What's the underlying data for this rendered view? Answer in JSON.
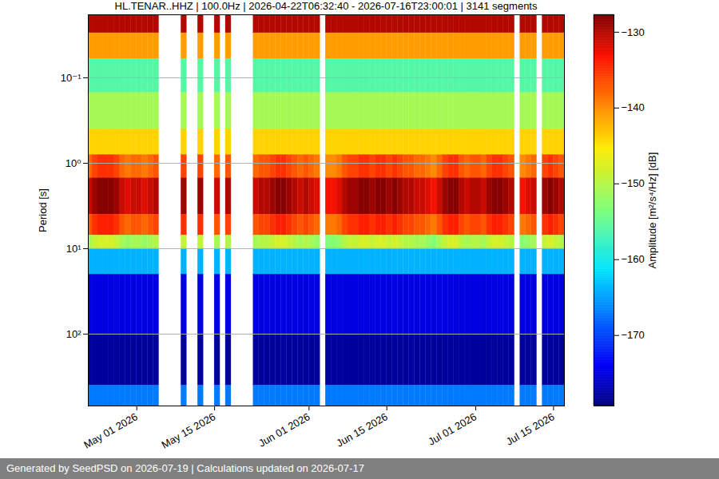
{
  "chart_data": {
    "type": "heatmap",
    "title": "HL.TENAR..HHZ | 100.0Hz | 2026-04-22T06:32:40 - 2026-07-16T23:00:01 | 3141 segments",
    "ylabel": "Period [s]",
    "footer": "Generated by SeedPSD on 2026-07-19 | Calculations updated on 2026-07-17",
    "log": "y",
    "grid": true,
    "xlim": [
      "2026-04-22T06:32:40",
      "2026-07-16T23:00:01"
    ],
    "xticks": [
      {
        "value": "2026-05-01",
        "label": "May 01 2026"
      },
      {
        "value": "2026-05-15",
        "label": "May 15 2026"
      },
      {
        "value": "2026-06-01",
        "label": "Jun 01 2026"
      },
      {
        "value": "2026-06-15",
        "label": "Jun 15 2026"
      },
      {
        "value": "2026-07-01",
        "label": "Jul 01 2026"
      },
      {
        "value": "2026-07-15",
        "label": "Jul 15 2026"
      }
    ],
    "ylim": [
      0.0183,
      692
    ],
    "yticks": [
      {
        "value": 0.1,
        "label": "10⁻¹"
      },
      {
        "value": 1,
        "label": "10⁰"
      },
      {
        "value": 10,
        "label": "10¹"
      },
      {
        "value": 100,
        "label": "10²"
      }
    ],
    "colorbar": {
      "label": "Amplitude [m²/s⁴/Hz] [dB]",
      "range": [
        -179.3,
        -127.7
      ],
      "ticks": [
        -130,
        -140,
        -150,
        -160,
        -170
      ]
    },
    "x_edges": [
      "2026-04-22",
      "2026-04-23",
      "2026-04-24",
      "2026-04-25",
      "2026-04-26",
      "2026-04-27",
      "2026-04-28",
      "2026-04-29",
      "2026-04-30",
      "2026-05-01",
      "2026-05-02",
      "2026-05-03",
      "2026-05-04",
      "2026-05-05",
      "2026-05-06",
      "2026-05-07",
      "2026-05-08",
      "2026-05-09",
      "2026-05-10",
      "2026-05-11",
      "2026-05-12",
      "2026-05-13",
      "2026-05-14",
      "2026-05-15",
      "2026-05-16",
      "2026-05-17",
      "2026-05-18",
      "2026-05-19",
      "2026-05-20",
      "2026-05-21",
      "2026-05-22",
      "2026-05-23",
      "2026-05-24",
      "2026-05-25",
      "2026-05-26",
      "2026-05-27",
      "2026-05-28",
      "2026-05-29",
      "2026-05-30",
      "2026-05-31",
      "2026-06-01",
      "2026-06-02",
      "2026-06-03",
      "2026-06-04",
      "2026-06-05",
      "2026-06-06",
      "2026-06-07",
      "2026-06-08",
      "2026-06-09",
      "2026-06-10",
      "2026-06-11",
      "2026-06-12",
      "2026-06-13",
      "2026-06-14",
      "2026-06-15",
      "2026-06-16",
      "2026-06-17",
      "2026-06-18",
      "2026-06-19",
      "2026-06-20",
      "2026-06-21",
      "2026-06-22",
      "2026-06-23",
      "2026-06-24",
      "2026-06-25",
      "2026-06-26",
      "2026-06-27",
      "2026-06-28",
      "2026-06-29",
      "2026-06-30",
      "2026-07-01",
      "2026-07-02",
      "2026-07-03",
      "2026-07-04",
      "2026-07-05",
      "2026-07-06",
      "2026-07-07",
      "2026-07-08",
      "2026-07-09",
      "2026-07-10",
      "2026-07-11",
      "2026-07-12",
      "2026-07-13",
      "2026-07-14",
      "2026-07-15",
      "2026-07-16",
      "2026-07-17"
    ],
    "y_edges": [
      0.0183,
      0.03,
      0.06,
      0.15,
      0.4,
      0.8,
      1.5,
      4,
      7,
      10,
      20,
      100,
      400,
      692
    ],
    "values": [
      [
        -130,
        -130,
        -130,
        -130,
        -130,
        -130,
        -130,
        -130,
        -130,
        -130,
        -130,
        -130,
        -130,
        null,
        null,
        null,
        null,
        -130,
        null,
        null,
        -130,
        null,
        null,
        -130,
        null,
        -130,
        null,
        null,
        null,
        null,
        -130,
        -130,
        -130,
        -130,
        -130,
        -130,
        -130,
        -130,
        -130,
        -130,
        -130,
        -130,
        null,
        -130,
        -130,
        -130,
        -130,
        -130,
        -130,
        -130,
        -130,
        -130,
        -130,
        -130,
        -130,
        -130,
        -130,
        -130,
        -130,
        -130,
        -130,
        -130,
        -130,
        -130,
        -130,
        -130,
        -130,
        -130,
        -130,
        -130,
        -130,
        -130,
        -130,
        -130,
        -130,
        -130,
        -130,
        null,
        -130,
        -130,
        -130,
        null,
        -130,
        -130,
        -130,
        -130
      ],
      [
        -141,
        -141,
        -141,
        -141,
        -141,
        -141,
        -141,
        -141,
        -141,
        -141,
        -141,
        -141,
        -141,
        null,
        null,
        null,
        null,
        -141,
        null,
        null,
        -141,
        null,
        null,
        -141,
        null,
        -141,
        null,
        null,
        null,
        null,
        -141,
        -141,
        -141,
        -141,
        -141,
        -141,
        -141,
        -141,
        -141,
        -141,
        -141,
        -141,
        null,
        -141,
        -141,
        -141,
        -141,
        -141,
        -141,
        -141,
        -141,
        -141,
        -141,
        -141,
        -141,
        -141,
        -141,
        -141,
        -141,
        -141,
        -141,
        -141,
        -141,
        -141,
        -141,
        -141,
        -141,
        -141,
        -141,
        -141,
        -141,
        -141,
        -141,
        -141,
        -141,
        -141,
        -141,
        null,
        -141,
        -141,
        -141,
        null,
        -141,
        -141,
        -141,
        -141
      ],
      [
        -156,
        -156,
        -156,
        -156,
        -156,
        -156,
        -156,
        -156,
        -156,
        -156,
        -156,
        -156,
        -156,
        null,
        null,
        null,
        null,
        -156,
        null,
        null,
        -156,
        null,
        null,
        -156,
        null,
        -156,
        null,
        null,
        null,
        null,
        -156,
        -156,
        -156,
        -156,
        -156,
        -156,
        -156,
        -156,
        -156,
        -156,
        -156,
        -156,
        null,
        -156,
        -156,
        -156,
        -156,
        -156,
        -156,
        -156,
        -156,
        -156,
        -156,
        -156,
        -156,
        -156,
        -156,
        -156,
        -156,
        -156,
        -156,
        -156,
        -156,
        -156,
        -156,
        -156,
        -156,
        -156,
        -156,
        -156,
        -156,
        -156,
        -156,
        -156,
        -156,
        -156,
        -156,
        null,
        -156,
        -156,
        -156,
        null,
        -156,
        -156,
        -156,
        -156
      ],
      [
        -151,
        -151,
        -151,
        -151,
        -151,
        -151,
        -151,
        -151,
        -151,
        -151,
        -151,
        -151,
        -151,
        null,
        null,
        null,
        null,
        -151,
        null,
        null,
        -151,
        null,
        null,
        -151,
        null,
        -151,
        null,
        null,
        null,
        null,
        -151,
        -151,
        -151,
        -151,
        -151,
        -151,
        -151,
        -151,
        -151,
        -151,
        -151,
        -151,
        null,
        -151,
        -151,
        -151,
        -151,
        -151,
        -151,
        -151,
        -151,
        -151,
        -151,
        -151,
        -151,
        -151,
        -151,
        -151,
        -151,
        -151,
        -151,
        -151,
        -151,
        -151,
        -151,
        -151,
        -151,
        -151,
        -151,
        -151,
        -151,
        -151,
        -151,
        -151,
        -151,
        -151,
        -151,
        null,
        -151,
        -151,
        -151,
        null,
        -151,
        -151,
        -151,
        -151
      ],
      [
        -144,
        -144,
        -144,
        -144,
        -144,
        -144,
        -144,
        -144,
        -144,
        -144,
        -144,
        -144,
        -144,
        null,
        null,
        null,
        null,
        -144,
        null,
        null,
        -144,
        null,
        null,
        -144,
        null,
        -144,
        null,
        null,
        null,
        null,
        -144,
        -144,
        -144,
        -144,
        -144,
        -144,
        -144,
        -144,
        -144,
        -144,
        -144,
        -144,
        null,
        -144,
        -144,
        -144,
        -144,
        -144,
        -144,
        -144,
        -144,
        -144,
        -144,
        -144,
        -144,
        -144,
        -144,
        -144,
        -144,
        -144,
        -144,
        -144,
        -144,
        -144,
        -144,
        -144,
        -144,
        -144,
        -144,
        -144,
        -144,
        -144,
        -144,
        -144,
        -144,
        -144,
        -144,
        null,
        -144,
        -144,
        -144,
        null,
        -144,
        -144,
        -144,
        -144
      ],
      [
        -138,
        -136,
        -135,
        -135,
        -135,
        -136,
        -138,
        -139,
        -138,
        -138,
        -139,
        -138,
        -137,
        null,
        null,
        null,
        null,
        -136,
        null,
        null,
        -136,
        null,
        null,
        -138,
        null,
        -137,
        null,
        null,
        null,
        null,
        -138,
        -137,
        -137,
        -136,
        -135,
        -135,
        -136,
        -137,
        -138,
        -137,
        -138,
        -139,
        null,
        -140,
        -140,
        -139,
        -137,
        -136,
        -136,
        -135,
        -135,
        -136,
        -135,
        -135,
        -136,
        -135,
        -136,
        -137,
        -137,
        -138,
        -138,
        -139,
        -140,
        -138,
        -136,
        -135,
        -135,
        -137,
        -138,
        -137,
        -137,
        -138,
        -136,
        -135,
        -135,
        -136,
        -137,
        null,
        -140,
        -139,
        -138,
        null,
        -136,
        -135,
        -136,
        -137
      ],
      [
        -131,
        -129,
        -128,
        -128,
        -128,
        -129,
        -131,
        -132,
        -131,
        -131,
        -132,
        -131,
        -130,
        null,
        null,
        null,
        null,
        -129,
        null,
        null,
        -129,
        null,
        null,
        -131,
        null,
        -130,
        null,
        null,
        null,
        null,
        -131,
        -130,
        -130,
        -129,
        -128,
        -128,
        -129,
        -130,
        -131,
        -130,
        -131,
        -132,
        null,
        -133,
        -133,
        -132,
        -130,
        -129,
        -129,
        -128,
        -128,
        -129,
        -128,
        -128,
        -129,
        -128,
        -129,
        -130,
        -130,
        -131,
        -131,
        -132,
        -133,
        -131,
        -129,
        -128,
        -128,
        -130,
        -131,
        -130,
        -130,
        -131,
        -129,
        -128,
        -128,
        -129,
        -130,
        null,
        -133,
        -132,
        -131,
        null,
        -129,
        -128,
        -129,
        -130
      ],
      [
        -137,
        -135,
        -134,
        -134,
        -134,
        -135,
        -137,
        -138,
        -137,
        -137,
        -138,
        -137,
        -136,
        null,
        null,
        null,
        null,
        -135,
        null,
        null,
        -135,
        null,
        null,
        -137,
        null,
        -136,
        null,
        null,
        null,
        null,
        -137,
        -136,
        -136,
        -135,
        -134,
        -134,
        -135,
        -136,
        -137,
        -136,
        -137,
        -138,
        null,
        -139,
        -139,
        -138,
        -136,
        -135,
        -135,
        -134,
        -134,
        -135,
        -134,
        -134,
        -135,
        -134,
        -135,
        -136,
        -136,
        -137,
        -137,
        -138,
        -139,
        -137,
        -135,
        -134,
        -134,
        -136,
        -137,
        -136,
        -136,
        -137,
        -135,
        -134,
        -134,
        -135,
        -136,
        null,
        -139,
        -138,
        -137,
        null,
        -135,
        -134,
        -135,
        -136
      ],
      [
        -151,
        -149,
        -148,
        -148,
        -148,
        -149,
        -151,
        -152,
        -151,
        -151,
        -152,
        -151,
        -150,
        null,
        null,
        null,
        null,
        -149,
        null,
        null,
        -149,
        null,
        null,
        -151,
        null,
        -150,
        null,
        null,
        null,
        null,
        -151,
        -150,
        -150,
        -149,
        -148,
        -148,
        -149,
        -150,
        -151,
        -150,
        -151,
        -152,
        null,
        -153,
        -153,
        -152,
        -150,
        -149,
        -149,
        -148,
        -148,
        -149,
        -148,
        -148,
        -149,
        -148,
        -149,
        -150,
        -150,
        -151,
        -151,
        -152,
        -153,
        -151,
        -149,
        -148,
        -148,
        -150,
        -151,
        -150,
        -150,
        -151,
        -149,
        -148,
        -148,
        -149,
        -150,
        null,
        -153,
        -152,
        -151,
        null,
        -149,
        -148,
        -149,
        -150
      ],
      [
        -164,
        -164,
        -164,
        -164,
        -164,
        -164,
        -164,
        -164,
        -164,
        -164,
        -164,
        -164,
        -164,
        null,
        null,
        null,
        null,
        -164,
        null,
        null,
        -164,
        null,
        null,
        -164,
        null,
        -164,
        null,
        null,
        null,
        null,
        -164,
        -164,
        -164,
        -164,
        -164,
        -164,
        -164,
        -164,
        -164,
        -164,
        -164,
        -164,
        null,
        -164,
        -164,
        -164,
        -164,
        -164,
        -164,
        -164,
        -164,
        -164,
        -164,
        -164,
        -164,
        -164,
        -164,
        -164,
        -164,
        -164,
        -164,
        -164,
        -164,
        -164,
        -164,
        -164,
        -164,
        -164,
        -164,
        -164,
        -164,
        -164,
        -164,
        -164,
        -164,
        -164,
        -164,
        null,
        -164,
        -164,
        -164,
        null,
        -164,
        -164,
        -164,
        -164
      ],
      [
        -175,
        -175,
        -175,
        -175,
        -175,
        -175,
        -175,
        -175,
        -175,
        -175,
        -175,
        -175,
        -175,
        null,
        null,
        null,
        null,
        -175,
        null,
        null,
        -175,
        null,
        null,
        -175,
        null,
        -175,
        null,
        null,
        null,
        null,
        -175,
        -175,
        -175,
        -175,
        -175,
        -175,
        -175,
        -175,
        -175,
        -175,
        -175,
        -175,
        null,
        -175,
        -175,
        -175,
        -175,
        -175,
        -175,
        -175,
        -175,
        -175,
        -175,
        -175,
        -175,
        -175,
        -175,
        -175,
        -175,
        -175,
        -175,
        -175,
        -175,
        -175,
        -175,
        -175,
        -175,
        -175,
        -175,
        -175,
        -175,
        -175,
        -175,
        -175,
        -175,
        -175,
        -175,
        null,
        -175,
        -175,
        -175,
        null,
        -175,
        -175,
        -175,
        -175
      ],
      [
        -178,
        -178,
        -178,
        -178,
        -178,
        -178,
        -178,
        -178,
        -178,
        -178,
        -178,
        -178,
        -178,
        null,
        null,
        null,
        null,
        -178,
        null,
        null,
        -178,
        null,
        null,
        -178,
        null,
        -178,
        null,
        null,
        null,
        null,
        -178,
        -178,
        -178,
        -178,
        -178,
        -178,
        -178,
        -178,
        -178,
        -178,
        -178,
        -178,
        null,
        -178,
        -178,
        -178,
        -178,
        -178,
        -178,
        -178,
        -178,
        -178,
        -178,
        -178,
        -178,
        -178,
        -178,
        -178,
        -178,
        -178,
        -178,
        -178,
        -178,
        -178,
        -178,
        -178,
        -178,
        -178,
        -178,
        -178,
        -178,
        -178,
        -178,
        -178,
        -178,
        -178,
        -178,
        null,
        -178,
        -178,
        -178,
        null,
        -178,
        -178,
        -178,
        -178
      ],
      [
        -167,
        -167,
        -167,
        -167,
        -167,
        -167,
        -167,
        -167,
        -167,
        -167,
        -167,
        -167,
        -167,
        null,
        null,
        null,
        null,
        -167,
        null,
        null,
        -167,
        null,
        null,
        -167,
        null,
        -167,
        null,
        null,
        null,
        null,
        -167,
        -167,
        -167,
        -167,
        -167,
        -167,
        -167,
        -167,
        -167,
        -167,
        -167,
        -167,
        null,
        -167,
        -167,
        -167,
        -167,
        -167,
        -167,
        -167,
        -167,
        -167,
        -167,
        -167,
        -167,
        -167,
        -167,
        -167,
        -167,
        -167,
        -167,
        -167,
        -167,
        -167,
        -167,
        -167,
        -167,
        -167,
        -167,
        -167,
        -167,
        -167,
        -167,
        -167,
        -167,
        -167,
        -167,
        null,
        -167,
        -167,
        -167,
        null,
        -167,
        -167,
        -167,
        -167
      ]
    ]
  }
}
